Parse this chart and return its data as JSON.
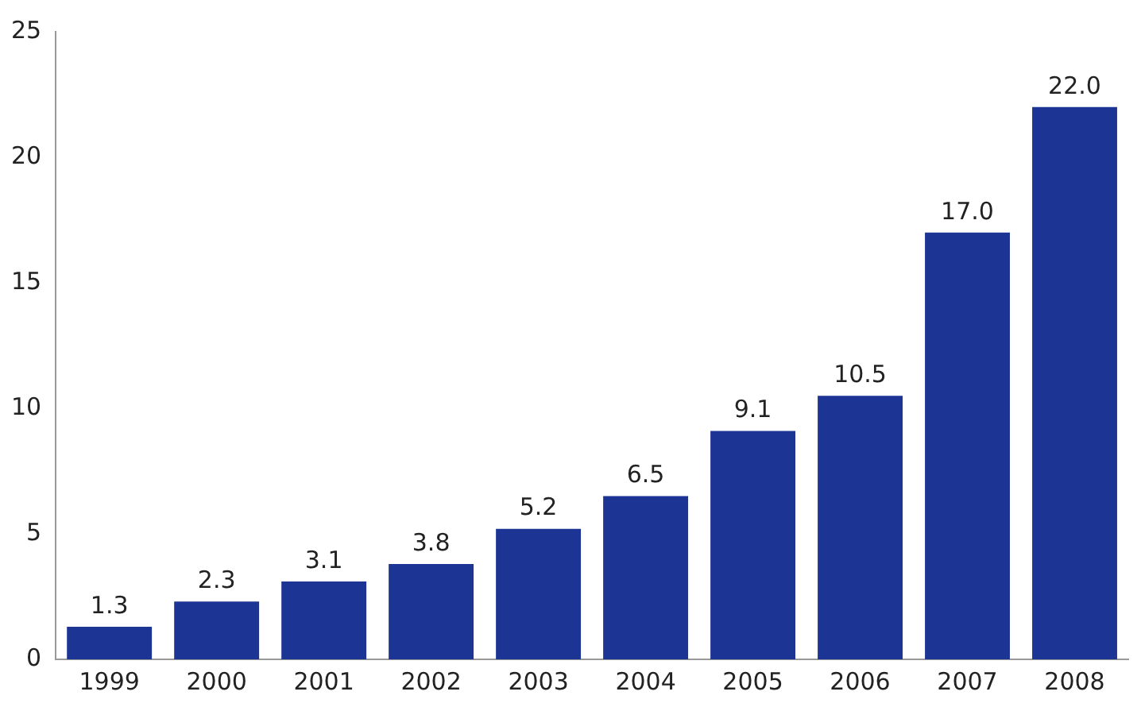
{
  "chart_data": {
    "type": "bar",
    "categories": [
      "1999",
      "2000",
      "2001",
      "2002",
      "2003",
      "2004",
      "2005",
      "2006",
      "2007",
      "2008"
    ],
    "values": [
      1.3,
      2.3,
      3.1,
      3.8,
      5.2,
      6.5,
      9.1,
      10.5,
      17.0,
      22.0
    ],
    "value_labels": [
      "1.3",
      "2.3",
      "3.1",
      "3.8",
      "5.2",
      "6.5",
      "9.1",
      "10.5",
      "17.0",
      "22.0"
    ],
    "color": "#1c3494",
    "ylim": [
      0,
      25
    ],
    "yticks": [
      0,
      5,
      10,
      15,
      20,
      25
    ],
    "grid": false,
    "legend": false
  }
}
